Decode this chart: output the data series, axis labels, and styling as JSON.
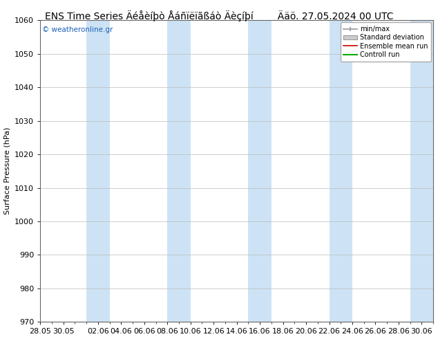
{
  "title_left": "ENS Time Series Äéåèíþò Åáñïëïãßáò Äèçíþí",
  "title_right": "Ääö. 27.05.2024 00 UTC",
  "ylabel": "Surface Pressure (hPa)",
  "ylim": [
    970,
    1060
  ],
  "yticks": [
    970,
    980,
    990,
    1000,
    1010,
    1020,
    1030,
    1040,
    1050,
    1060
  ],
  "x_labels": [
    "28.05",
    "30.05",
    "02.06",
    "04.06",
    "06.06",
    "08.06",
    "10.06",
    "12.06",
    "14.06",
    "16.06",
    "18.06",
    "20.06",
    "22.06",
    "24.06",
    "26.06",
    "28.06",
    "30.06"
  ],
  "num_days": 34,
  "bg_color": "#ffffff",
  "plot_bg_color": "#ffffff",
  "band_color": "#cde3f5",
  "watermark": "© weatheronline.gr",
  "watermark_color": "#1a5fb5",
  "title_fontsize": 10,
  "axis_fontsize": 8,
  "ylabel_fontsize": 8,
  "legend_fontsize": 7
}
